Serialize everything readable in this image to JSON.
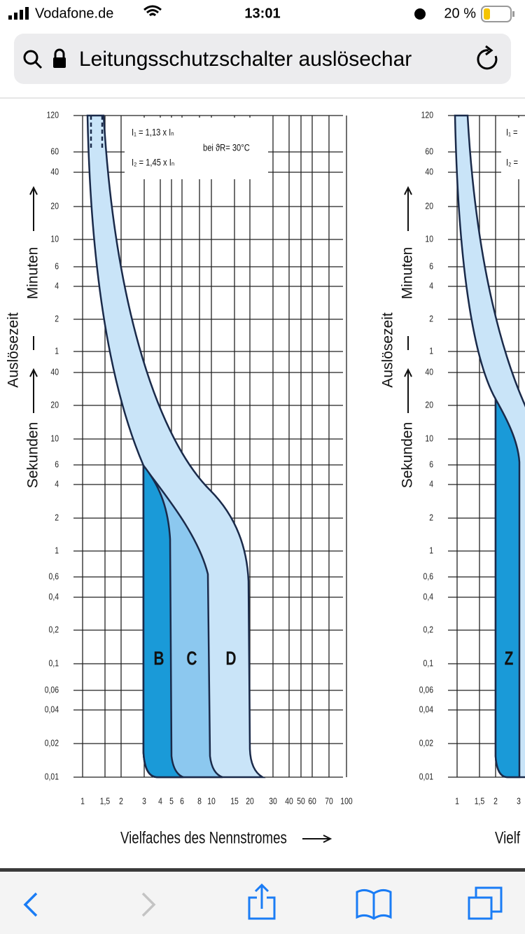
{
  "status_bar": {
    "carrier": "Vodafone.de",
    "time": "13:01",
    "battery": "20 %"
  },
  "address_bar": {
    "url_text": "Leitungsschutzschalter auslösechar"
  },
  "chart_image": {
    "left_panel": {
      "y_labels": [
        "120",
        "60",
        "40",
        "20",
        "10",
        "6",
        "4",
        "2",
        "1",
        "40",
        "20",
        "10",
        "6",
        "4",
        "2",
        "1",
        "0,6",
        "0,4",
        "0,2",
        "0,1",
        "0,06",
        "0,04",
        "0,02",
        "0,01"
      ],
      "x_labels": [
        "1",
        "1,5",
        "2",
        "3",
        "4",
        "5",
        "6",
        "8",
        "10",
        "15",
        "20",
        "30",
        "40",
        "50",
        "60",
        "70",
        "100"
      ],
      "y_axis_title": "Auslösezeit",
      "y_axis_minutes": "Minuten",
      "y_axis_seconds": "Sekunden",
      "x_axis_title": "Vielfaches des Nennstromes",
      "annotations": [
        "I₁ = 1,13 x Iₙ",
        "I₂ = 1,45 x Iₙ",
        "bei ϑR= 30°C"
      ],
      "band_labels": [
        "B",
        "C",
        "D"
      ]
    },
    "right_panel": {
      "y_labels": [
        "120",
        "60",
        "40",
        "20",
        "10",
        "6",
        "4",
        "2",
        "1",
        "40",
        "20",
        "10",
        "6",
        "4",
        "2",
        "1",
        "0,6",
        "0,4",
        "0,2",
        "0,1",
        "0,06",
        "0,04",
        "0,02",
        "0,01"
      ],
      "x_labels": [
        "1",
        "1,5",
        "2",
        "3"
      ],
      "y_axis_title": "Auslösezeit",
      "y_axis_minutes": "Minuten",
      "y_axis_seconds": "Sekunden",
      "x_axis_title": "Vielf",
      "annotations": [
        "I₁ =",
        "I₂ ="
      ],
      "band_labels": [
        "Z"
      ]
    }
  }
}
